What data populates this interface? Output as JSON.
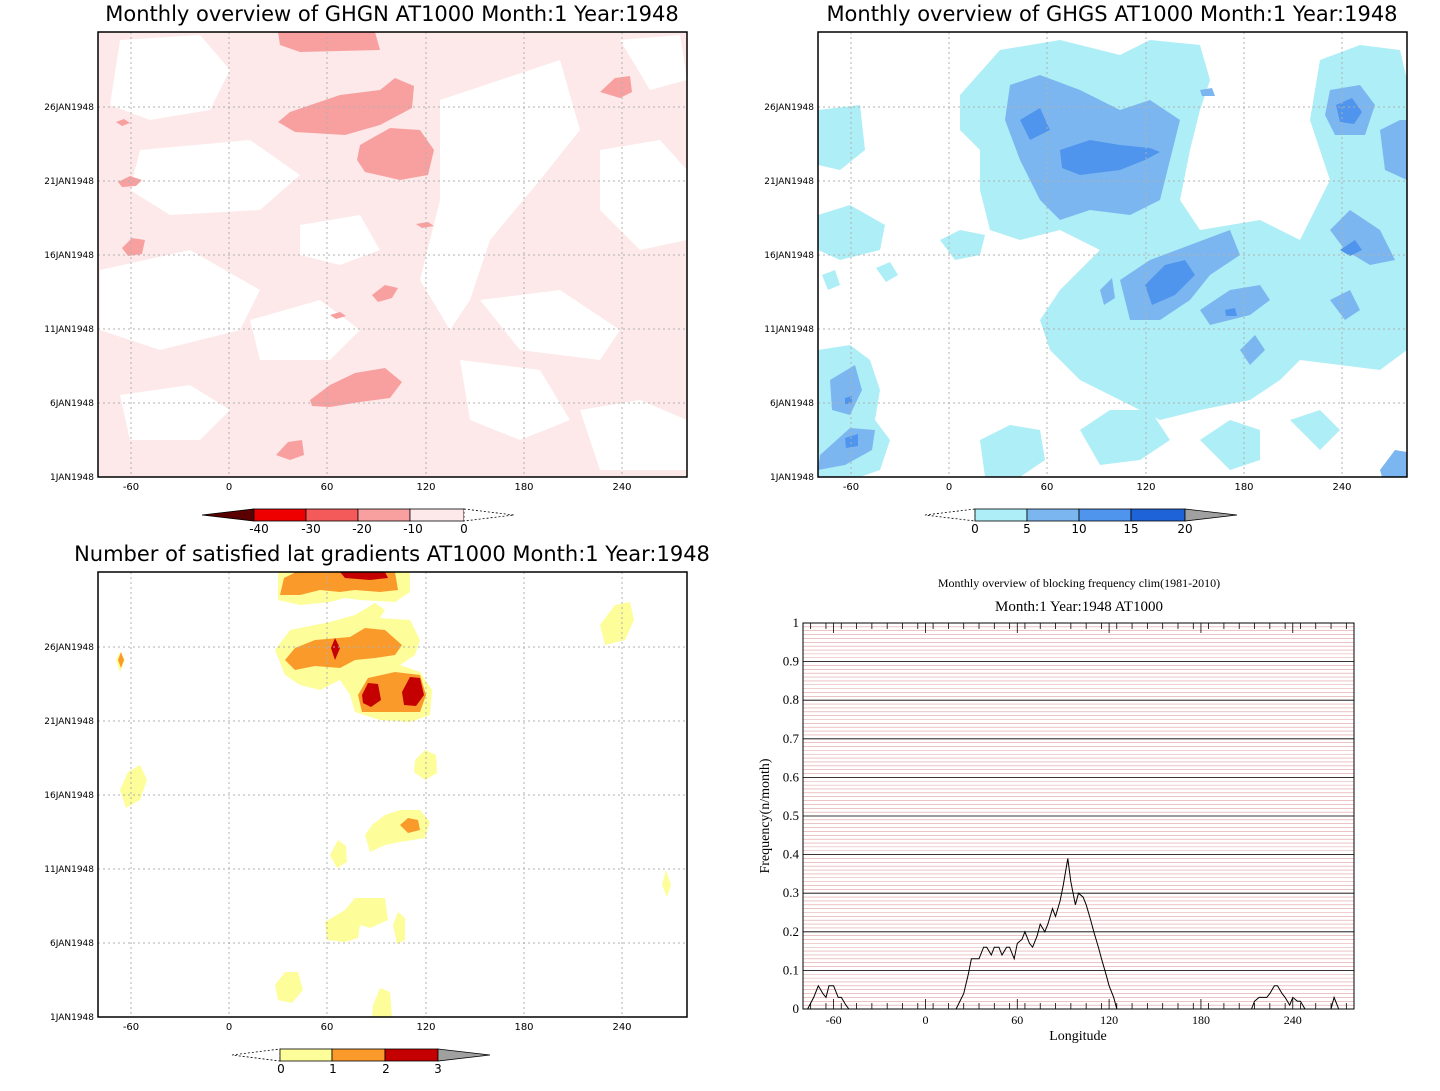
{
  "panels": {
    "ghgn": {
      "title": "Monthly overview of GHGN AT1000 Month:1 Year:1948",
      "x_ticks": [
        "-60",
        "0",
        "60",
        "120",
        "180",
        "240"
      ],
      "y_ticks": [
        "1JAN1948",
        "6JAN1948",
        "11JAN1948",
        "16JAN1948",
        "21JAN1948",
        "26JAN1948"
      ],
      "colorbar": {
        "labels": [
          "-40",
          "-30",
          "-20",
          "-10",
          "0"
        ],
        "colors": [
          "#5a0000",
          "#ee0000",
          "#f45a5a",
          "#f8a0a0",
          "#fde9e9"
        ]
      }
    },
    "ghgs": {
      "title": "Monthly overview of GHGS AT1000 Month:1 Year:1948",
      "x_ticks": [
        "-60",
        "0",
        "60",
        "120",
        "180",
        "240"
      ],
      "y_ticks": [
        "1JAN1948",
        "6JAN1948",
        "11JAN1948",
        "16JAN1948",
        "21JAN1948",
        "26JAN1948"
      ],
      "colorbar": {
        "labels": [
          "0",
          "5",
          "10",
          "15",
          "20"
        ],
        "colors": [
          "#aeeef6",
          "#7cb6f0",
          "#4f95ee",
          "#1e64d8",
          "#a0a0a0"
        ]
      }
    },
    "lat": {
      "title": "Number of satisfied lat gradients AT1000 Month:1 Year:1948",
      "x_ticks": [
        "-60",
        "0",
        "60",
        "120",
        "180",
        "240"
      ],
      "y_ticks": [
        "1JAN1948",
        "6JAN1948",
        "11JAN1948",
        "16JAN1948",
        "21JAN1948",
        "26JAN1948"
      ],
      "colorbar": {
        "labels": [
          "0",
          "1",
          "2",
          "3"
        ],
        "colors": [
          "#fdfd9a",
          "#f99a2a",
          "#c40000",
          "#a0a0a0"
        ]
      }
    },
    "freq": {
      "title": "Monthly overview of blocking frequency clim(1981-2010)",
      "subtitle": "Month:1 Year:1948  AT1000",
      "ylabel": "Frequency(n/month)",
      "xlabel": "Longitude"
    }
  },
  "chart_data": [
    {
      "type": "heatmap",
      "title": "Monthly overview of GHGN AT1000 Month:1 Year:1948",
      "x_range": [
        -80,
        280
      ],
      "y_range": [
        "1JAN1948",
        "31JAN1948"
      ],
      "levels": [
        -40,
        -30,
        -20,
        -10,
        0
      ],
      "grid": true
    },
    {
      "type": "heatmap",
      "title": "Monthly overview of GHGS AT1000 Month:1 Year:1948",
      "x_range": [
        -80,
        280
      ],
      "y_range": [
        "1JAN1948",
        "31JAN1948"
      ],
      "levels": [
        0,
        5,
        10,
        15,
        20
      ],
      "grid": true
    },
    {
      "type": "heatmap",
      "title": "Number of satisfied lat gradients AT1000 Month:1 Year:1948",
      "x_range": [
        -80,
        280
      ],
      "y_range": [
        "1JAN1948",
        "31JAN1948"
      ],
      "levels": [
        0,
        1,
        2,
        3
      ],
      "grid": true
    },
    {
      "type": "line",
      "title": "Monthly overview of blocking frequency clim(1981-2010)",
      "subtitle": "Month:1 Year:1948  AT1000",
      "xlabel": "Longitude",
      "ylabel": "Frequency(n/month)",
      "xlim": [
        -80,
        280
      ],
      "ylim": [
        0,
        1
      ],
      "x_ticks": [
        -60,
        0,
        60,
        120,
        180,
        240
      ],
      "y_ticks": [
        0,
        0.1,
        0.2,
        0.3,
        0.4,
        0.5,
        0.6,
        0.7,
        0.8,
        0.9,
        1
      ],
      "grid": true,
      "x": [
        -77,
        -73,
        -70,
        -67,
        -65,
        -63,
        -60,
        -57,
        -55,
        -52,
        -50,
        20,
        25,
        28,
        30,
        33,
        35,
        38,
        40,
        43,
        45,
        48,
        50,
        53,
        55,
        58,
        60,
        63,
        65,
        68,
        70,
        73,
        75,
        78,
        80,
        83,
        85,
        88,
        90,
        93,
        95,
        98,
        100,
        103,
        105,
        108,
        110,
        113,
        115,
        118,
        120,
        123,
        125,
        127,
        213,
        215,
        218,
        220,
        223,
        225,
        228,
        230,
        233,
        235,
        238,
        240,
        243,
        245,
        248,
        250,
        265,
        267,
        270
      ],
      "y": [
        0,
        0.03,
        0.06,
        0.04,
        0.03,
        0.06,
        0.06,
        0.03,
        0.03,
        0.01,
        0,
        0,
        0.04,
        0.09,
        0.13,
        0.13,
        0.13,
        0.16,
        0.16,
        0.14,
        0.16,
        0.16,
        0.14,
        0.16,
        0.16,
        0.13,
        0.17,
        0.18,
        0.2,
        0.17,
        0.16,
        0.19,
        0.22,
        0.2,
        0.22,
        0.26,
        0.24,
        0.28,
        0.32,
        0.39,
        0.33,
        0.27,
        0.3,
        0.29,
        0.27,
        0.23,
        0.2,
        0.16,
        0.13,
        0.09,
        0.06,
        0.03,
        0,
        0,
        0,
        0.02,
        0.03,
        0.03,
        0.03,
        0.04,
        0.06,
        0.06,
        0.04,
        0.03,
        0.01,
        0.03,
        0.02,
        0.02,
        0,
        0,
        0,
        0.03,
        0
      ]
    }
  ]
}
